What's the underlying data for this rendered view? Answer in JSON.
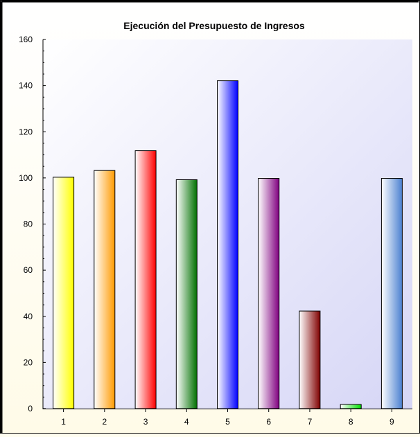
{
  "chart_data": {
    "type": "bar",
    "title": "Ejecución del Presupuesto de Ingresos",
    "categories": [
      "1",
      "2",
      "3",
      "4",
      "5",
      "6",
      "7",
      "8",
      "9"
    ],
    "values": [
      100.3,
      103.2,
      111.8,
      99.2,
      142.1,
      99.8,
      42.3,
      1.8,
      99.8
    ],
    "bar_colors": [
      "#ffff00",
      "#ff9a00",
      "#ff0000",
      "#007000",
      "#0000ff",
      "#800080",
      "#800000",
      "#00e000",
      "#4a80d0"
    ],
    "ylim": [
      0,
      160
    ],
    "yticks": [
      0,
      20,
      40,
      60,
      80,
      100,
      120,
      140,
      160
    ],
    "xlabel": "",
    "ylabel": "",
    "grid": false,
    "legend": "none"
  }
}
